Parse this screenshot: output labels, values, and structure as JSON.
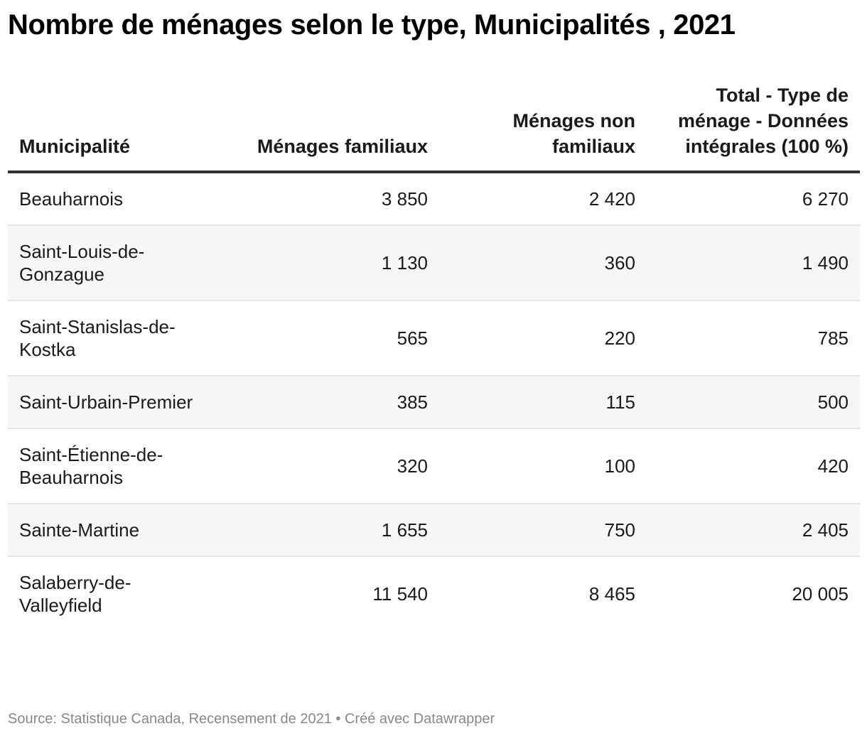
{
  "title": "Nombre de ménages selon le type, Municipalités , 2021",
  "footer": "Source: Statistique Canada, Recensement de 2021 • Créé avec Datawrapper",
  "chart_data": {
    "type": "table",
    "title": "Nombre de ménages selon le type, Municipalités , 2021",
    "columns": [
      "Municipalité",
      "Ménages familiaux",
      "Ménages non familiaux",
      "Total - Type de ménage - Données intégrales (100 %)"
    ],
    "rows": [
      {
        "name": "Beauharnois",
        "values": [
          "3 850",
          "2 420",
          "6 270"
        ]
      },
      {
        "name": "Saint-Louis-de-Gonzague",
        "values": [
          "1 130",
          "360",
          "1 490"
        ]
      },
      {
        "name": "Saint-Stanislas-de-Kostka",
        "values": [
          "565",
          "220",
          "785"
        ]
      },
      {
        "name": "Saint-Urbain-Premier",
        "values": [
          "385",
          "115",
          "500"
        ]
      },
      {
        "name": "Saint-Étienne-de-Beauharnois",
        "values": [
          "320",
          "100",
          "420"
        ]
      },
      {
        "name": "Sainte-Martine",
        "values": [
          "1 655",
          "750",
          "2 405"
        ]
      },
      {
        "name": "Salaberry-de-Valleyfield",
        "values": [
          "11 540",
          "8 465",
          "20 005"
        ]
      }
    ]
  },
  "colors": {
    "text": "#1a1a1a",
    "header_rule": "#333333",
    "row_rule": "#e5e5e5",
    "alt_row": "#f7f7f7",
    "footer": "#888888"
  }
}
